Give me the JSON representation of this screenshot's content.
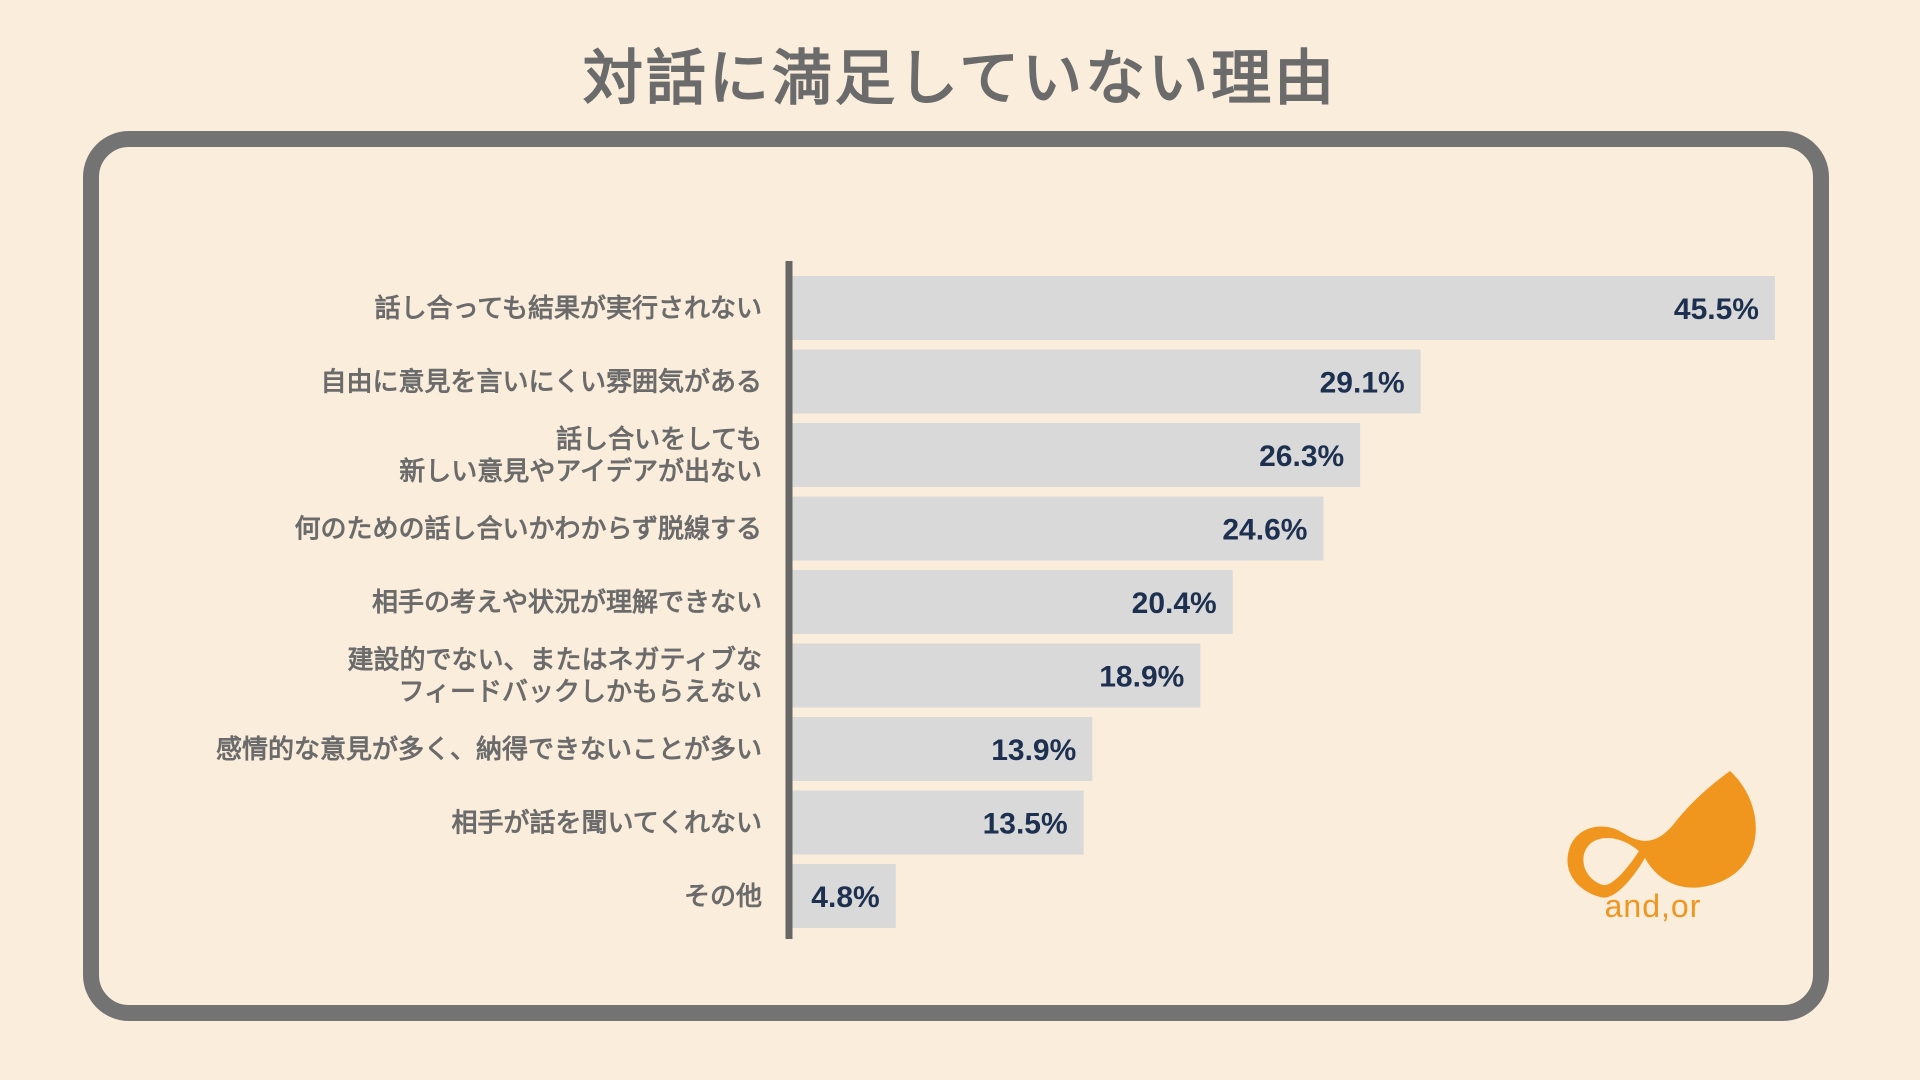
{
  "title": "対話に満足していない理由",
  "brand": "and,or",
  "colors": {
    "background": "#faeddc",
    "frame": "#737373",
    "bar": "#d9d9d9",
    "axis": "#666666",
    "label_text": "#6b6b6b",
    "value_text": "#1d3050",
    "logo": "#f0951e"
  },
  "chart_data": {
    "type": "bar",
    "orientation": "horizontal",
    "title": "対話に満足していない理由",
    "xlim": [
      0,
      45.5
    ],
    "categories": [
      [
        "話し合っても結果が実行されない"
      ],
      [
        "自由に意見を言いにくい雰囲気がある"
      ],
      [
        "話し合いをしても",
        "新しい意見やアイデアが出ない"
      ],
      [
        "何のための話し合いかわからず脱線する"
      ],
      [
        "相手の考えや状況が理解できない"
      ],
      [
        "建設的でない、またはネガティブな",
        "フィードバックしかもらえない"
      ],
      [
        "感情的な意見が多く、納得できないことが多い"
      ],
      [
        "相手が話を聞いてくれない"
      ],
      [
        "その他"
      ]
    ],
    "values": [
      45.5,
      29.1,
      26.3,
      24.6,
      20.4,
      18.9,
      13.9,
      13.5,
      4.8
    ],
    "value_labels": [
      "45.5%",
      "29.1%",
      "26.3%",
      "24.6%",
      "20.4%",
      "18.9%",
      "13.9%",
      "13.5%",
      "4.8%"
    ]
  }
}
